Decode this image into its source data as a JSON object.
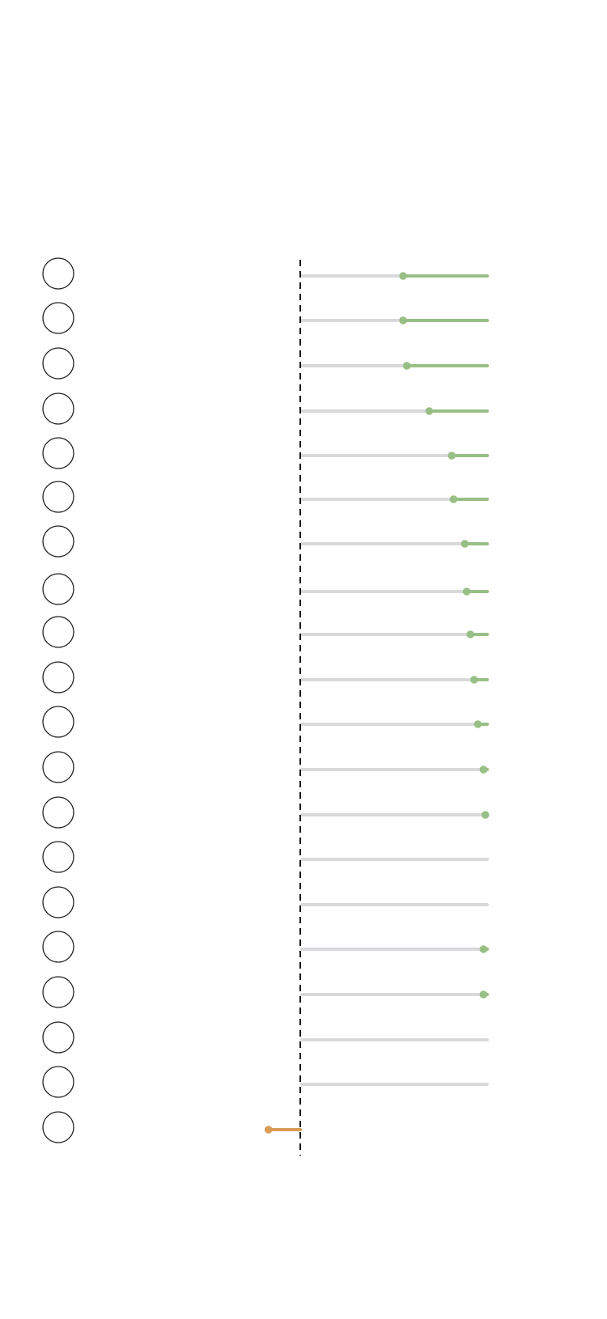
{
  "chart_data": {
    "type": "lollipop",
    "rows": 20,
    "reference_line": "dashed-vertical",
    "values": [
      -0.45,
      -0.45,
      -0.43,
      -0.31,
      -0.19,
      -0.18,
      -0.12,
      -0.11,
      -0.09,
      -0.07,
      -0.05,
      -0.02,
      -0.01,
      -0.0,
      0.0,
      0.02,
      0.02,
      0.0,
      0.0,
      -0.17
    ],
    "bar_extent": 1.0,
    "track_range": [
      0,
      1
    ],
    "colors": {
      "positive": "#98bf85",
      "negative": "#d99c54",
      "track": "#d9d9dc",
      "circle_stroke": "#222222",
      "dashed_line": "#111111"
    }
  }
}
